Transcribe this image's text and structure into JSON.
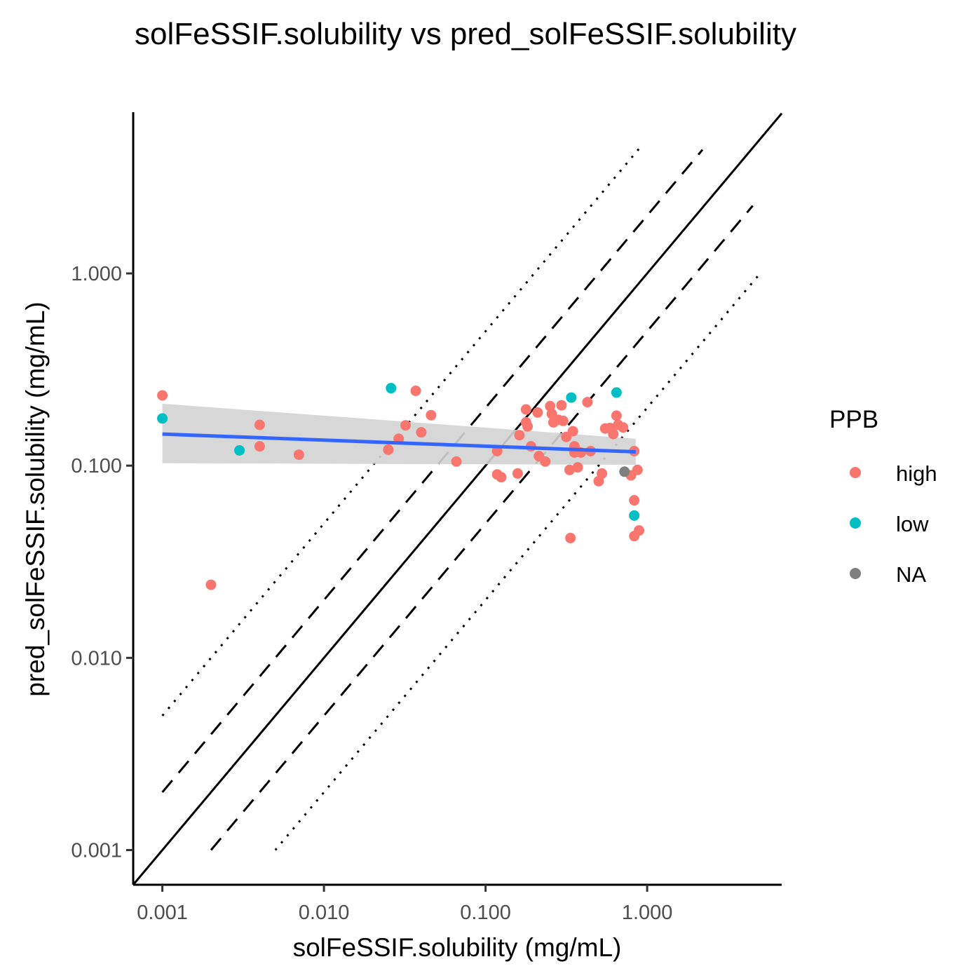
{
  "chart_data": {
    "type": "scatter",
    "title": "solFeSSIF.solubility vs pred_solFeSSIF.solubility",
    "xlabel": "solFeSSIF.solubility (mg/mL)",
    "ylabel": "pred_solFeSSIF.solubility (mg/mL)",
    "x_scale": "log10",
    "y_scale": "log10",
    "xlim": [
      0.00066,
      6.8
    ],
    "ylim": [
      0.00066,
      6.9
    ],
    "x_ticks": [
      0.001,
      0.01,
      0.1,
      1
    ],
    "x_tick_labels": [
      "0.001",
      "0.010",
      "0.100",
      "1.000"
    ],
    "y_ticks": [
      0.001,
      0.01,
      0.1,
      1
    ],
    "y_tick_labels": [
      "0.001",
      "0.010",
      "0.100",
      "1.000"
    ],
    "grid": false,
    "legend": {
      "title": "PPB",
      "position": "right",
      "entries": [
        {
          "label": "high",
          "color": "#F8766D"
        },
        {
          "label": "low",
          "color": "#00BFC4"
        },
        {
          "label": "NA",
          "color": "#7F7F7F"
        }
      ]
    },
    "reference_lines": [
      {
        "style": "solid",
        "fold": 1,
        "x_from": 0.00066,
        "x_to": 6.8
      },
      {
        "style": "dashed",
        "fold": 2,
        "x_from": 0.001,
        "x_to": 2.2
      },
      {
        "style": "dashed",
        "fold": 0.5,
        "x_from": 0.002,
        "x_to": 4.5
      },
      {
        "style": "dotted",
        "fold": 5,
        "x_from": 0.001,
        "x_to": 0.92
      },
      {
        "style": "dotted",
        "fold": 0.2,
        "x_from": 0.005,
        "x_to": 5.0
      }
    ],
    "smooth": {
      "color": "#3366FF",
      "x": [
        0.001,
        0.85
      ],
      "y": [
        0.146,
        0.118
      ],
      "ci_upper": [
        0.21,
        0.138
      ],
      "ci_lower": [
        0.103,
        0.101
      ],
      "ci_fill": "#D3D3D3"
    },
    "series": [
      {
        "name": "high",
        "color": "#F8766D",
        "points": [
          [
            0.001,
            0.232
          ],
          [
            0.002,
            0.024
          ],
          [
            0.004,
            0.163
          ],
          [
            0.004,
            0.126
          ],
          [
            0.007,
            0.114
          ],
          [
            0.025,
            0.121
          ],
          [
            0.029,
            0.138
          ],
          [
            0.032,
            0.162
          ],
          [
            0.037,
            0.245
          ],
          [
            0.04,
            0.149
          ],
          [
            0.046,
            0.183
          ],
          [
            0.066,
            0.105
          ],
          [
            0.118,
            0.119
          ],
          [
            0.118,
            0.09
          ],
          [
            0.125,
            0.087
          ],
          [
            0.158,
            0.091
          ],
          [
            0.162,
            0.144
          ],
          [
            0.178,
            0.196
          ],
          [
            0.178,
            0.168
          ],
          [
            0.182,
            0.16
          ],
          [
            0.191,
            0.126
          ],
          [
            0.21,
            0.189
          ],
          [
            0.214,
            0.112
          ],
          [
            0.234,
            0.105
          ],
          [
            0.251,
            0.204
          ],
          [
            0.257,
            0.186
          ],
          [
            0.263,
            0.168
          ],
          [
            0.282,
            0.173
          ],
          [
            0.295,
            0.206
          ],
          [
            0.302,
            0.171
          ],
          [
            0.316,
            0.141
          ],
          [
            0.331,
            0.095
          ],
          [
            0.335,
            0.042
          ],
          [
            0.347,
            0.151
          ],
          [
            0.355,
            0.126
          ],
          [
            0.355,
            0.117
          ],
          [
            0.372,
            0.098
          ],
          [
            0.389,
            0.117
          ],
          [
            0.427,
            0.214
          ],
          [
            0.447,
            0.119
          ],
          [
            0.501,
            0.083
          ],
          [
            0.525,
            0.091
          ],
          [
            0.55,
            0.156
          ],
          [
            0.589,
            0.157
          ],
          [
            0.617,
            0.146
          ],
          [
            0.646,
            0.182
          ],
          [
            0.661,
            0.163
          ],
          [
            0.71,
            0.158
          ],
          [
            0.794,
            0.089
          ],
          [
            0.832,
            0.119
          ],
          [
            0.832,
            0.066
          ],
          [
            0.832,
            0.043
          ],
          [
            0.871,
            0.095
          ],
          [
            0.891,
            0.046
          ]
        ]
      },
      {
        "name": "low",
        "color": "#00BFC4",
        "points": [
          [
            0.001,
            0.176
          ],
          [
            0.003,
            0.12
          ],
          [
            0.026,
            0.253
          ],
          [
            0.339,
            0.226
          ],
          [
            0.646,
            0.24
          ],
          [
            0.832,
            0.055
          ]
        ]
      },
      {
        "name": "NA",
        "color": "#7F7F7F",
        "points": [
          [
            0.724,
            0.093
          ]
        ]
      }
    ]
  }
}
